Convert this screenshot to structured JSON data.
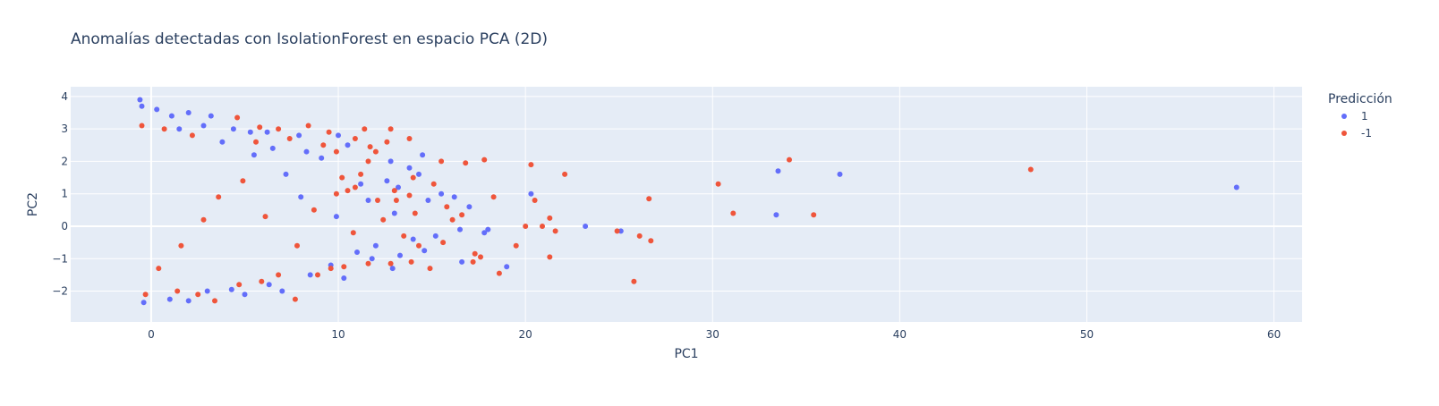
{
  "chart_data": {
    "type": "scatter",
    "title": "Anomalías detectadas con IsolationForest en espacio PCA (2D)",
    "xlabel": "PC1",
    "ylabel": "PC2",
    "xlim": [
      -4.3,
      61.5
    ],
    "ylim": [
      -2.95,
      4.3
    ],
    "x_ticks": [
      0,
      10,
      20,
      30,
      40,
      50,
      60
    ],
    "y_ticks": [
      -2,
      -1,
      0,
      1,
      2,
      3,
      4
    ],
    "x_tick_labels": [
      "0",
      "10",
      "20",
      "30",
      "40",
      "50",
      "60"
    ],
    "y_tick_labels": [
      "−2",
      "−1",
      "0",
      "1",
      "2",
      "3",
      "4"
    ],
    "grid": true,
    "legend_position": "top-right, outside plot",
    "legend_title": "Predicción",
    "colors": {
      "plot_bg": "#e5ecf6",
      "grid": "#ffffff",
      "text": "#2a3f5f"
    },
    "series": [
      {
        "name": "1",
        "color": "#636efa",
        "points": [
          [
            -0.6,
            3.9
          ],
          [
            -0.5,
            3.7
          ],
          [
            0.3,
            3.6
          ],
          [
            1.1,
            3.4
          ],
          [
            2.0,
            3.5
          ],
          [
            3.2,
            3.4
          ],
          [
            1.5,
            3.0
          ],
          [
            2.8,
            3.1
          ],
          [
            4.4,
            3.0
          ],
          [
            5.3,
            2.9
          ],
          [
            6.2,
            2.9
          ],
          [
            7.9,
            2.8
          ],
          [
            10.0,
            2.8
          ],
          [
            10.5,
            2.5
          ],
          [
            8.3,
            2.3
          ],
          [
            5.5,
            2.2
          ],
          [
            14.5,
            2.2
          ],
          [
            12.8,
            2.0
          ],
          [
            9.1,
            2.1
          ],
          [
            13.8,
            1.8
          ],
          [
            14.3,
            1.6
          ],
          [
            12.6,
            1.4
          ],
          [
            11.2,
            1.3
          ],
          [
            13.2,
            1.2
          ],
          [
            15.5,
            1.0
          ],
          [
            20.3,
            1.0
          ],
          [
            16.2,
            0.9
          ],
          [
            14.8,
            0.8
          ],
          [
            17.0,
            0.6
          ],
          [
            18.0,
            -0.1
          ],
          [
            17.8,
            -0.2
          ],
          [
            16.5,
            -0.1
          ],
          [
            15.2,
            -0.3
          ],
          [
            14.0,
            -0.4
          ],
          [
            12.0,
            -0.6
          ],
          [
            14.6,
            -0.75
          ],
          [
            13.3,
            -0.9
          ],
          [
            11.8,
            -1.0
          ],
          [
            16.6,
            -1.1
          ],
          [
            12.9,
            -1.3
          ],
          [
            19.0,
            -1.25
          ],
          [
            23.2,
            0.0
          ],
          [
            25.1,
            -0.15
          ],
          [
            33.5,
            1.7
          ],
          [
            36.8,
            1.6
          ],
          [
            33.4,
            0.35
          ],
          [
            58.0,
            1.2
          ],
          [
            10.3,
            -1.6
          ],
          [
            7.0,
            -2.0
          ],
          [
            5.0,
            -2.1
          ],
          [
            3.0,
            -2.0
          ],
          [
            1.0,
            -2.25
          ],
          [
            -0.4,
            -2.35
          ],
          [
            2.0,
            -2.3
          ],
          [
            4.3,
            -1.95
          ],
          [
            6.3,
            -1.8
          ],
          [
            8.5,
            -1.5
          ],
          [
            9.6,
            -1.2
          ],
          [
            11.0,
            -0.8
          ],
          [
            9.9,
            0.3
          ],
          [
            11.6,
            0.8
          ],
          [
            13.0,
            0.4
          ],
          [
            8.0,
            0.9
          ],
          [
            7.2,
            1.6
          ],
          [
            6.5,
            2.4
          ],
          [
            3.8,
            2.6
          ]
        ]
      },
      {
        "name": "-1",
        "color": "#ef553b",
        "points": [
          [
            4.6,
            3.35
          ],
          [
            5.8,
            3.05
          ],
          [
            6.8,
            3.0
          ],
          [
            8.4,
            3.1
          ],
          [
            9.5,
            2.9
          ],
          [
            11.4,
            3.0
          ],
          [
            12.8,
            3.0
          ],
          [
            13.8,
            2.7
          ],
          [
            10.9,
            2.7
          ],
          [
            12.6,
            2.6
          ],
          [
            11.7,
            2.45
          ],
          [
            12.0,
            2.3
          ],
          [
            9.2,
            2.5
          ],
          [
            9.9,
            2.3
          ],
          [
            11.6,
            2.0
          ],
          [
            15.5,
            2.0
          ],
          [
            17.8,
            2.05
          ],
          [
            16.8,
            1.95
          ],
          [
            20.3,
            1.9
          ],
          [
            22.1,
            1.6
          ],
          [
            11.2,
            1.6
          ],
          [
            10.2,
            1.5
          ],
          [
            14.0,
            1.5
          ],
          [
            10.9,
            1.2
          ],
          [
            10.5,
            1.1
          ],
          [
            9.9,
            1.0
          ],
          [
            13.0,
            1.1
          ],
          [
            13.8,
            0.95
          ],
          [
            12.1,
            0.8
          ],
          [
            13.1,
            0.8
          ],
          [
            14.1,
            0.4
          ],
          [
            15.8,
            0.6
          ],
          [
            16.6,
            0.35
          ],
          [
            20.5,
            0.8
          ],
          [
            21.3,
            0.25
          ],
          [
            26.6,
            0.85
          ],
          [
            30.3,
            1.3
          ],
          [
            34.1,
            2.05
          ],
          [
            47.0,
            1.75
          ],
          [
            31.1,
            0.4
          ],
          [
            35.4,
            0.35
          ],
          [
            20.0,
            0.0
          ],
          [
            20.9,
            0.0
          ],
          [
            21.6,
            -0.15
          ],
          [
            24.9,
            -0.15
          ],
          [
            26.1,
            -0.3
          ],
          [
            26.7,
            -0.45
          ],
          [
            25.8,
            -1.7
          ],
          [
            21.3,
            -0.95
          ],
          [
            17.3,
            -0.85
          ],
          [
            17.6,
            -0.95
          ],
          [
            17.2,
            -1.1
          ],
          [
            18.6,
            -1.45
          ],
          [
            15.6,
            -0.5
          ],
          [
            14.3,
            -0.6
          ],
          [
            13.9,
            -1.1
          ],
          [
            12.8,
            -1.15
          ],
          [
            11.6,
            -1.15
          ],
          [
            10.3,
            -1.25
          ],
          [
            9.6,
            -1.3
          ],
          [
            8.9,
            -1.5
          ],
          [
            7.7,
            -2.25
          ],
          [
            6.8,
            -1.5
          ],
          [
            5.9,
            -1.7
          ],
          [
            4.7,
            -1.8
          ],
          [
            3.4,
            -2.3
          ],
          [
            2.5,
            -2.1
          ],
          [
            1.4,
            -2.0
          ],
          [
            -0.3,
            -2.1
          ],
          [
            0.4,
            -1.3
          ],
          [
            1.6,
            -0.6
          ],
          [
            2.8,
            0.2
          ],
          [
            3.6,
            0.9
          ],
          [
            4.9,
            1.4
          ],
          [
            5.6,
            2.6
          ],
          [
            7.4,
            2.7
          ],
          [
            2.2,
            2.8
          ],
          [
            0.7,
            3.0
          ],
          [
            -0.5,
            3.1
          ],
          [
            6.1,
            0.3
          ],
          [
            7.8,
            -0.6
          ],
          [
            8.7,
            0.5
          ],
          [
            10.8,
            -0.2
          ],
          [
            12.4,
            0.2
          ],
          [
            15.1,
            1.3
          ],
          [
            16.1,
            0.2
          ],
          [
            18.3,
            0.9
          ],
          [
            19.5,
            -0.6
          ],
          [
            14.9,
            -1.3
          ],
          [
            13.5,
            -0.3
          ]
        ]
      }
    ]
  }
}
